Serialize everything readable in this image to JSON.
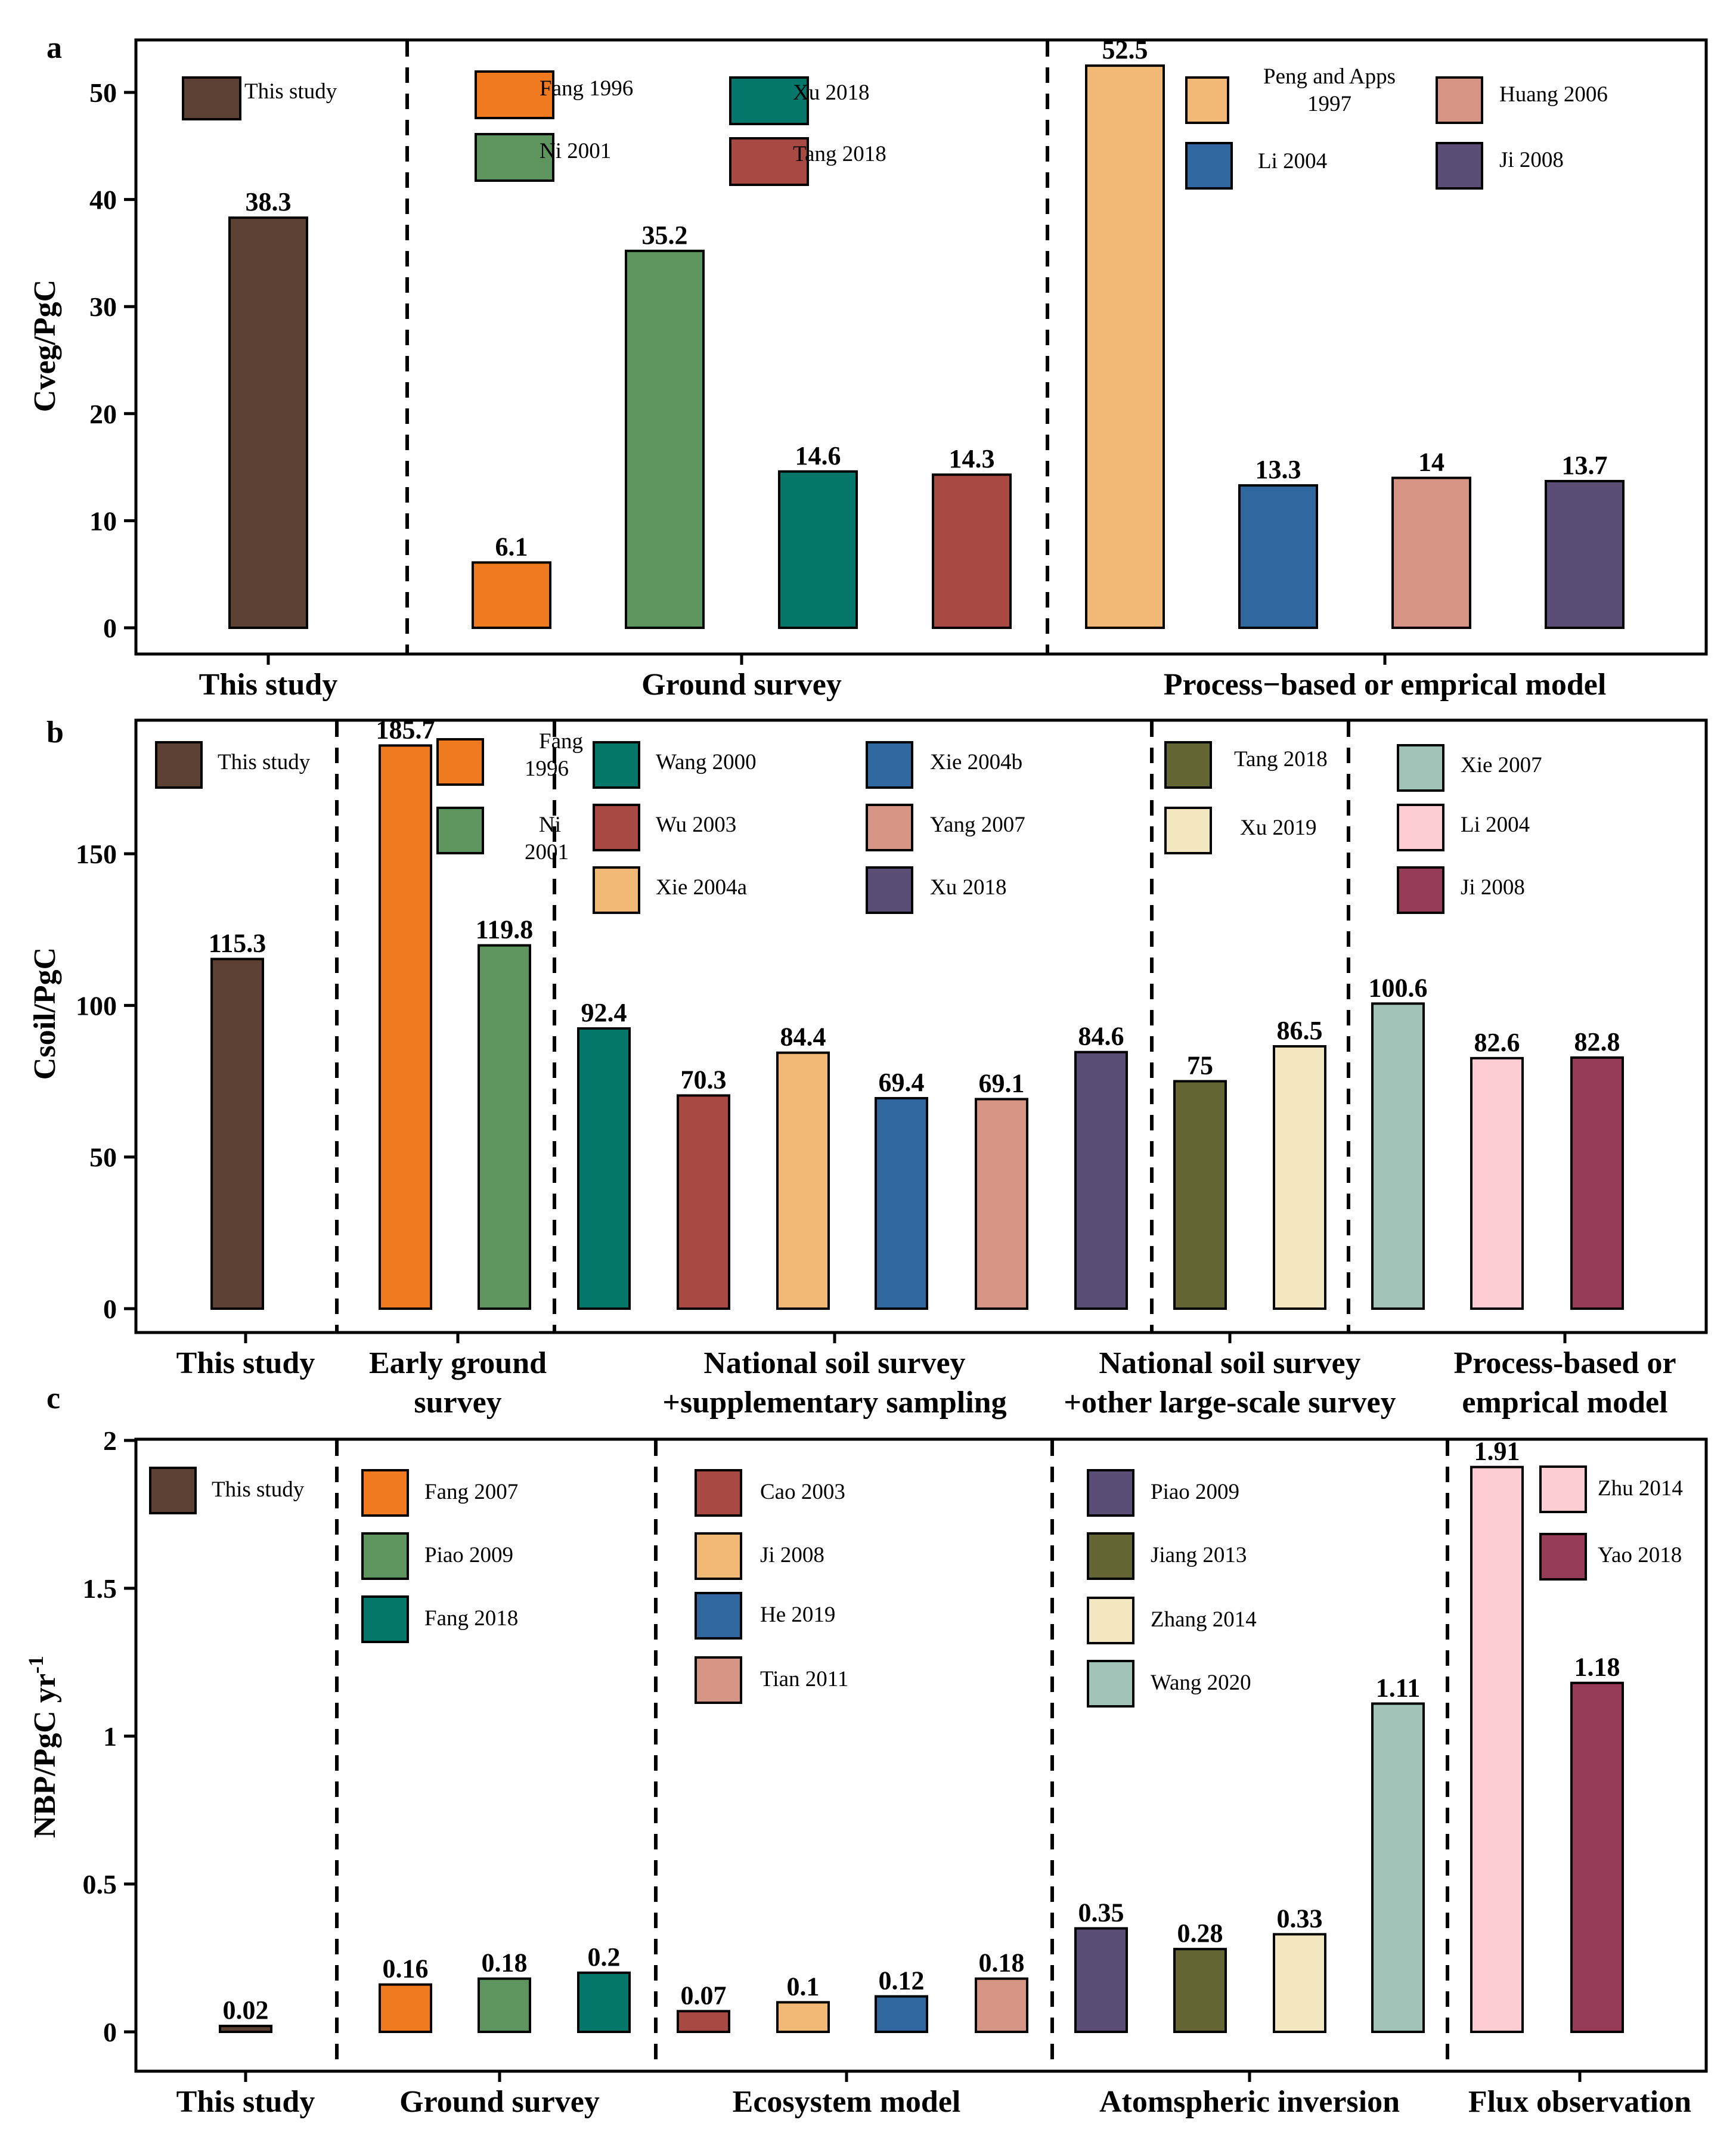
{
  "chart_data": [
    {
      "type": "bar",
      "panel": "a",
      "ylabel": "Cveg/PgC",
      "ylim": [
        0,
        55
      ],
      "yticks": [
        0,
        10,
        20,
        30,
        40,
        50
      ],
      "ytick_labels": [
        "0",
        "10",
        "20",
        "30",
        "40",
        "50"
      ],
      "groups": [
        {
          "label": "This study",
          "bars": [
            {
              "name": "This study",
              "value": 38.3,
              "label": "38.3",
              "color": "#5C4033"
            }
          ]
        },
        {
          "label": "Ground survey",
          "bars": [
            {
              "name": "Fang 1996",
              "value": 6.1,
              "label": "6.1",
              "color": "#F07A1F"
            },
            {
              "name": "Ni 2001",
              "value": 35.2,
              "label": "35.2",
              "color": "#5E945E"
            },
            {
              "name": "Xu 2018",
              "value": 14.6,
              "label": "14.6",
              "color": "#05766A"
            },
            {
              "name": "Tang 2018",
              "value": 14.3,
              "label": "14.3",
              "color": "#A84943"
            }
          ]
        },
        {
          "label": "Process−based or emprical model",
          "bars": [
            {
              "name": "Peng and Apps 1997",
              "value": 52.5,
              "label": "52.5",
              "color": "#F1B876"
            },
            {
              "name": "Li 2004",
              "value": 13.3,
              "label": "13.3",
              "color": "#30679E"
            },
            {
              "name": "Huang 2006",
              "value": 14,
              "label": "14",
              "color": "#D69484"
            },
            {
              "name": "Ji 2008",
              "value": 13.7,
              "label": "13.7",
              "color": "#5B4E76"
            }
          ]
        }
      ],
      "legend": [
        {
          "name": "This study",
          "lines": [
            "This study"
          ]
        },
        {
          "name": "Fang 1996",
          "lines": [
            "Fang 1996"
          ]
        },
        {
          "name": "Ni 2001",
          "lines": [
            "Ni 2001"
          ]
        },
        {
          "name": "Xu 2018",
          "lines": [
            "Xu 2018"
          ]
        },
        {
          "name": "Tang 2018",
          "lines": [
            "Tang 2018"
          ]
        },
        {
          "name": "Peng and Apps 1997",
          "lines": [
            "Peng and Apps",
            "1997"
          ]
        },
        {
          "name": "Li 2004",
          "lines": [
            "Li 2004"
          ]
        },
        {
          "name": "Huang 2006",
          "lines": [
            "Huang 2006"
          ]
        },
        {
          "name": "Ji 2008",
          "lines": [
            "Ji 2008"
          ]
        }
      ]
    },
    {
      "type": "bar",
      "panel": "b",
      "ylabel": "Csoil/PgC",
      "ylim": [
        0,
        195
      ],
      "yticks": [
        0,
        50,
        100,
        150
      ],
      "ytick_labels": [
        "0",
        "50",
        "100",
        "150"
      ],
      "groups": [
        {
          "label": "This study",
          "bars": [
            {
              "name": "This study",
              "value": 115.3,
              "label": "115.3",
              "color": "#5C4033"
            }
          ]
        },
        {
          "label": "Early ground survey",
          "bars": [
            {
              "name": "Fang 1996",
              "value": 185.7,
              "label": "185.7",
              "color": "#F07A1F"
            },
            {
              "name": "Ni 2001",
              "value": 119.8,
              "label": "119.8",
              "color": "#5E945E"
            }
          ]
        },
        {
          "label": "National soil survey +supplementary sampling",
          "bars": [
            {
              "name": "Wang 2000",
              "value": 92.4,
              "label": "92.4",
              "color": "#05766A"
            },
            {
              "name": "Wu 2003",
              "value": 70.3,
              "label": "70.3",
              "color": "#A84943"
            },
            {
              "name": "Xie 2004a",
              "value": 84.4,
              "label": "84.4",
              "color": "#F1B876"
            },
            {
              "name": "Xie 2004b",
              "value": 69.4,
              "label": "69.4",
              "color": "#30679E"
            },
            {
              "name": "Yang 2007",
              "value": 69.1,
              "label": "69.1",
              "color": "#D69484"
            },
            {
              "name": "Xu 2018",
              "value": 84.6,
              "label": "84.6",
              "color": "#5B4E76"
            }
          ]
        },
        {
          "label": "National soil survey +other large-scale survey",
          "bars": [
            {
              "name": "Tang 2018",
              "value": 75,
              "label": "75",
              "color": "#636532"
            },
            {
              "name": "Xu 2019",
              "value": 86.5,
              "label": "86.5",
              "color": "#F3E7BF"
            }
          ]
        },
        {
          "label": "Process-based or emprical model",
          "bars": [
            {
              "name": "Xie 2007",
              "value": 100.6,
              "label": "100.6",
              "color": "#A1C3B8"
            },
            {
              "name": "Li 2004",
              "value": 82.6,
              "label": "82.6",
              "color": "#FDCDD3"
            },
            {
              "name": "Ji 2008",
              "value": 82.8,
              "label": "82.8",
              "color": "#973C56"
            }
          ]
        }
      ],
      "group_label_lines": [
        [
          "This study"
        ],
        [
          "Early ground",
          "survey"
        ],
        [
          "National soil survey",
          "+supplementary sampling"
        ],
        [
          "National soil survey",
          "+other large-scale survey"
        ],
        [
          "Process-based or",
          "emprical model"
        ]
      ],
      "legend": [
        {
          "name": "This study",
          "lines": [
            "This study"
          ]
        },
        {
          "name": "Fang 1996",
          "lines": [
            "Fang",
            "1996"
          ]
        },
        {
          "name": "Ni 2001",
          "lines": [
            "Ni",
            "2001"
          ]
        },
        {
          "name": "Wang 2000",
          "lines": [
            "Wang 2000"
          ]
        },
        {
          "name": "Wu 2003",
          "lines": [
            "Wu 2003"
          ]
        },
        {
          "name": "Xie 2004a",
          "lines": [
            "Xie 2004a"
          ]
        },
        {
          "name": "Xie 2004b",
          "lines": [
            "Xie 2004b"
          ]
        },
        {
          "name": "Yang 2007",
          "lines": [
            "Yang 2007"
          ]
        },
        {
          "name": "Xu 2018",
          "lines": [
            "Xu 2018"
          ]
        },
        {
          "name": "Tang 2018",
          "lines": [
            "Tang 2018"
          ]
        },
        {
          "name": "Xu 2019",
          "lines": [
            "Xu 2019"
          ]
        },
        {
          "name": "Xie 2007",
          "lines": [
            "Xie 2007"
          ]
        },
        {
          "name": "Li 2004",
          "lines": [
            "Li 2004"
          ]
        },
        {
          "name": "Ji 2008",
          "lines": [
            "Ji 2008"
          ]
        }
      ]
    },
    {
      "type": "bar",
      "panel": "c",
      "ylabel": "NBP/PgC yr",
      "ylabel_sup": "-1",
      "ylim": [
        -0.06,
        2
      ],
      "yticks": [
        0,
        0.5,
        1,
        1.5,
        2
      ],
      "ytick_labels": [
        "0",
        "0.5",
        "1",
        "1.5",
        "2"
      ],
      "groups": [
        {
          "label": "This study",
          "bars": [
            {
              "name": "This study",
              "value": 0.02,
              "label": "0.02",
              "color": "#5C4033"
            }
          ]
        },
        {
          "label": "Ground survey",
          "bars": [
            {
              "name": "Fang 2007",
              "value": 0.16,
              "label": "0.16",
              "color": "#F07A1F"
            },
            {
              "name": "Piao 2009",
              "value": 0.18,
              "label": "0.18",
              "color": "#5E945E"
            },
            {
              "name": "Fang 2018",
              "value": 0.2,
              "label": "0.2",
              "color": "#05766A"
            }
          ]
        },
        {
          "label": "Ecosystem model",
          "bars": [
            {
              "name": "Cao 2003",
              "value": 0.07,
              "label": "0.07",
              "color": "#A84943"
            },
            {
              "name": "Ji 2008",
              "value": 0.1,
              "label": "0.1",
              "color": "#F1B876"
            },
            {
              "name": "He 2019",
              "value": 0.12,
              "label": "0.12",
              "color": "#30679E"
            },
            {
              "name": "Tian 2011",
              "value": 0.18,
              "label": "0.18",
              "color": "#D69484"
            }
          ]
        },
        {
          "label": "Atomspheric inversion",
          "bars": [
            {
              "name": "Piao 2009",
              "value": 0.35,
              "label": "0.35",
              "color": "#5B4E76"
            },
            {
              "name": "Jiang 2013",
              "value": 0.28,
              "label": "0.28",
              "color": "#636532"
            },
            {
              "name": "Zhang 2014",
              "value": 0.33,
              "label": "0.33",
              "color": "#F3E7BF"
            },
            {
              "name": "Wang 2020",
              "value": 1.11,
              "label": "1.11",
              "color": "#A1C3B8"
            }
          ]
        },
        {
          "label": "Flux observation",
          "bars": [
            {
              "name": "Zhu 2014",
              "value": 1.91,
              "label": "1.91",
              "color": "#FDCDD3"
            },
            {
              "name": "Yao 2018",
              "value": 1.18,
              "label": "1.18",
              "color": "#973C56"
            }
          ]
        }
      ],
      "legend": [
        {
          "name": "This study",
          "lines": [
            "This study"
          ]
        },
        {
          "name": "Fang 2007",
          "lines": [
            "Fang 2007"
          ]
        },
        {
          "name": "Piao 2009 (ground)",
          "lines": [
            "Piao 2009"
          ]
        },
        {
          "name": "Fang 2018",
          "lines": [
            "Fang 2018"
          ]
        },
        {
          "name": "Cao 2003",
          "lines": [
            "Cao 2003"
          ]
        },
        {
          "name": "Ji 2008",
          "lines": [
            "Ji 2008"
          ]
        },
        {
          "name": "He 2019",
          "lines": [
            "He 2019"
          ]
        },
        {
          "name": "Tian 2011",
          "lines": [
            "Tian 2011"
          ]
        },
        {
          "name": "Piao 2009 (inversion)",
          "lines": [
            "Piao 2009"
          ]
        },
        {
          "name": "Jiang 2013",
          "lines": [
            "Jiang 2013"
          ]
        },
        {
          "name": "Zhang 2014",
          "lines": [
            "Zhang 2014"
          ]
        },
        {
          "name": "Wang 2020",
          "lines": [
            "Wang 2020"
          ]
        },
        {
          "name": "Zhu 2014",
          "lines": [
            "Zhu 2014"
          ]
        },
        {
          "name": "Yao 2018",
          "lines": [
            "Yao 2018"
          ]
        }
      ]
    }
  ]
}
